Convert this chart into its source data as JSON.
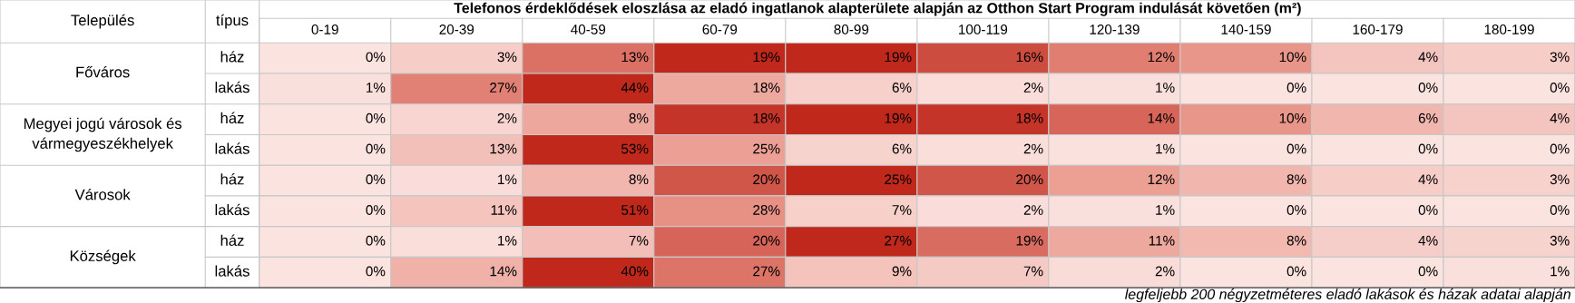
{
  "chart_data": {
    "type": "heatmap",
    "title": "Telefonos érdeklődések eloszlása az eladó ingatlanok alapterülete alapján az Otthon Start Program indulását követően (m²)",
    "categories": [
      "0-19",
      "20-39",
      "40-59",
      "60-79",
      "80-99",
      "100-119",
      "120-139",
      "140-159",
      "160-179",
      "180-199"
    ],
    "y_categories": [
      "ház",
      "lakás",
      "ház",
      "lakás",
      "ház",
      "lakás",
      "ház",
      "lakás"
    ],
    "y2_categories": [
      "Főváros",
      null,
      "Megyei jogú városok és vármegyeszékhelyek",
      null,
      "Városok",
      null,
      "Községek",
      null
    ],
    "cells": [
      [
        0,
        3,
        13,
        19,
        19,
        16,
        12,
        10,
        4,
        3
      ],
      [
        1,
        27,
        44,
        18,
        6,
        2,
        1,
        0,
        0,
        0
      ],
      [
        0,
        2,
        8,
        18,
        19,
        18,
        14,
        10,
        6,
        4
      ],
      [
        0,
        13,
        53,
        25,
        6,
        2,
        1,
        0,
        0,
        0
      ],
      [
        0,
        1,
        8,
        20,
        25,
        20,
        12,
        8,
        4,
        3
      ],
      [
        0,
        11,
        51,
        28,
        7,
        2,
        1,
        0,
        0,
        0
      ],
      [
        0,
        1,
        7,
        20,
        27,
        19,
        11,
        8,
        4,
        3
      ],
      [
        0,
        14,
        40,
        27,
        9,
        7,
        2,
        0,
        0,
        1
      ]
    ],
    "cell_labels": [
      [
        "0%",
        "3%",
        "13%",
        "19%",
        "19%",
        "16%",
        "12%",
        "10%",
        "4%",
        "3%"
      ],
      [
        "1%",
        "27%",
        "44%",
        "18%",
        "6%",
        "2%",
        "1%",
        "0%",
        "0%",
        "0%"
      ],
      [
        "0%",
        "2%",
        "8%",
        "18%",
        "19%",
        "18%",
        "14%",
        "10%",
        "6%",
        "4%"
      ],
      [
        "0%",
        "13%",
        "53%",
        "25%",
        "6%",
        "2%",
        "1%",
        "0%",
        "0%",
        "0%"
      ],
      [
        "0%",
        "1%",
        "8%",
        "20%",
        "25%",
        "20%",
        "12%",
        "8%",
        "4%",
        "3%"
      ],
      [
        "0%",
        "11%",
        "51%",
        "28%",
        "7%",
        "2%",
        "1%",
        "0%",
        "0%",
        "0%"
      ],
      [
        "0%",
        "1%",
        "7%",
        "20%",
        "27%",
        "19%",
        "11%",
        "8%",
        "4%",
        "3%"
      ],
      [
        "0%",
        "14%",
        "40%",
        "27%",
        "9%",
        "7%",
        "2%",
        "0%",
        "0%",
        "1%"
      ]
    ],
    "annotations": [
      "Település",
      "típus",
      "legfeljebb 200 négyzetméteres eladó lakások és házak adatai alapján"
    ]
  }
}
